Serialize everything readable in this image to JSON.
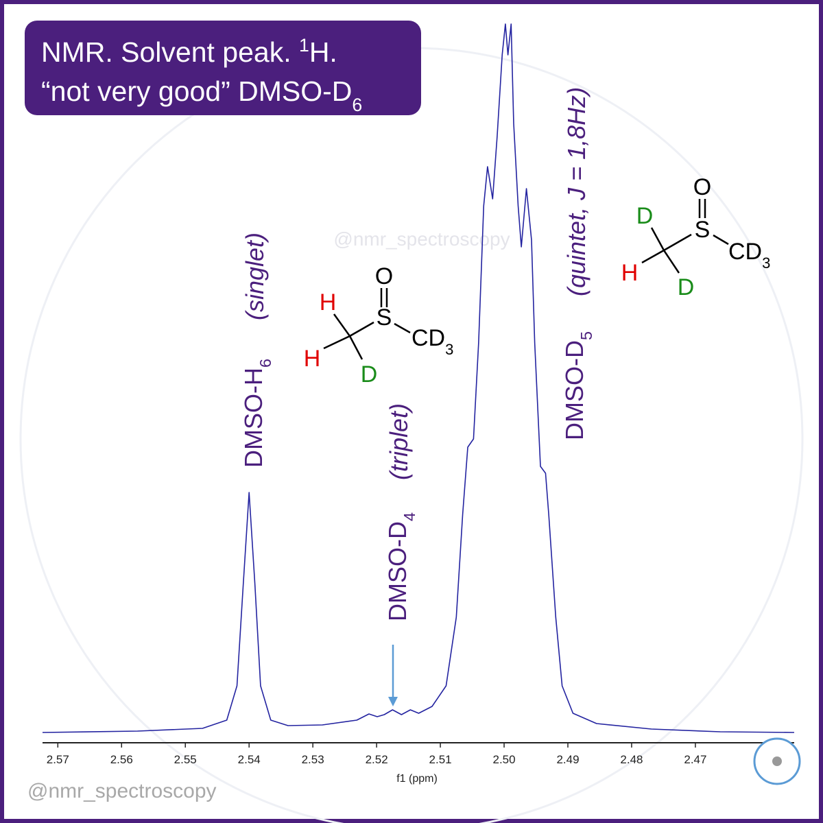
{
  "chart_data": {
    "type": "line",
    "title_lines": [
      [
        {
          "text": "NMR. Solvent peak. "
        },
        {
          "text": "1",
          "shift": "super"
        },
        {
          "text": "H."
        }
      ],
      [
        {
          "text": "“not very good” DMSO-D"
        },
        {
          "text": "6",
          "shift": "sub"
        }
      ]
    ],
    "xlabel": "f1 (ppm)",
    "xlim": [
      2.5724,
      2.4545
    ],
    "xticks": [
      2.57,
      2.56,
      2.55,
      2.54,
      2.53,
      2.52,
      2.51,
      {
        "value": 2.5,
        "label": "2.50"
      },
      2.49,
      2.48,
      2.47
    ],
    "ylim": [
      0,
      103.5
    ],
    "x": [
      2.5724,
      2.5575,
      2.5473,
      2.5435,
      2.5419,
      2.5409,
      2.54,
      2.5391,
      2.5382,
      2.5366,
      2.5339,
      2.5285,
      2.5231,
      2.5212,
      2.5199,
      2.5188,
      2.5175,
      2.5161,
      2.5147,
      2.5134,
      2.5113,
      2.5091,
      2.5075,
      2.5065,
      2.5057,
      2.5048,
      2.504,
      2.5032,
      2.5026,
      2.5018,
      2.5011,
      2.5003,
      2.4998,
      2.4994,
      2.4989,
      2.4985,
      2.4978,
      2.4973,
      2.4965,
      2.4957,
      2.4952,
      2.4943,
      2.4935,
      2.493,
      2.4919,
      2.4909,
      2.4892,
      2.4855,
      2.4769,
      2.4661,
      2.4545
    ],
    "series": [
      {
        "color": "#2323a0",
        "values": [
          0.2,
          0.4,
          0.8,
          2.0,
          7.0,
          22.0,
          35.2,
          22.0,
          7.0,
          2.0,
          1.2,
          1.3,
          2.0,
          2.9,
          2.5,
          2.8,
          3.5,
          2.8,
          3.5,
          3.0,
          4.0,
          7.0,
          17.0,
          32.0,
          41.8,
          43.0,
          57.0,
          77.0,
          82.7,
          78.0,
          87.0,
          99.0,
          103.5,
          99.0,
          103.5,
          89.0,
          77.0,
          71.0,
          79.5,
          72.0,
          57.0,
          39.0,
          38.0,
          32.0,
          17.0,
          7.0,
          3.0,
          1.5,
          0.7,
          0.3,
          0.2
        ]
      }
    ],
    "annotations": [
      {
        "parts": [
          {
            "text": "DMSO-H"
          },
          {
            "text": "6",
            "shift": "sub"
          }
        ]
      },
      {
        "parts": [
          {
            "text": "(singlet)"
          }
        ],
        "italic": true
      },
      {
        "parts": [
          {
            "text": "DMSO-D"
          },
          {
            "text": "4",
            "shift": "sub"
          }
        ]
      },
      {
        "parts": [
          {
            "text": "(triplet)"
          }
        ],
        "italic": true
      },
      {
        "parts": [
          {
            "text": "DMSO-D"
          },
          {
            "text": "5",
            "shift": "sub"
          }
        ]
      },
      {
        "parts": [
          {
            "text": "(quintet, J = 1,8Hz)"
          }
        ],
        "italic": true
      }
    ],
    "annotation_color": "#4b1f7d",
    "arrow_color": "#5b9bd5",
    "molecules": [
      {
        "atoms": [
          {
            "parts": [
              {
                "text": "O"
              }
            ],
            "color": "#000000"
          },
          {
            "parts": [
              {
                "text": "S"
              }
            ],
            "color": "#000000"
          },
          {
            "parts": [
              {
                "text": "CD"
              },
              {
                "text": "3",
                "shift": "sub"
              }
            ],
            "color": "#000000"
          },
          {
            "parts": [
              {
                "text": "H"
              }
            ],
            "color": "#e00000"
          },
          {
            "parts": [
              {
                "text": "H"
              }
            ],
            "color": "#e00000"
          },
          {
            "parts": [
              {
                "text": "D"
              }
            ],
            "color": "#1a8c1a"
          }
        ]
      },
      {
        "atoms": [
          {
            "parts": [
              {
                "text": "O"
              }
            ],
            "color": "#000000"
          },
          {
            "parts": [
              {
                "text": "S"
              }
            ],
            "color": "#000000"
          },
          {
            "parts": [
              {
                "text": "CD"
              },
              {
                "text": "3",
                "shift": "sub"
              }
            ],
            "color": "#000000"
          },
          {
            "parts": [
              {
                "text": "D"
              }
            ],
            "color": "#1a8c1a"
          },
          {
            "parts": [
              {
                "text": "H"
              }
            ],
            "color": "#e00000"
          },
          {
            "parts": [
              {
                "text": "D"
              }
            ],
            "color": "#1a8c1a"
          }
        ]
      }
    ],
    "watermark": "@nmr_spectroscopy",
    "credit": "@nmr_spectroscopy"
  }
}
